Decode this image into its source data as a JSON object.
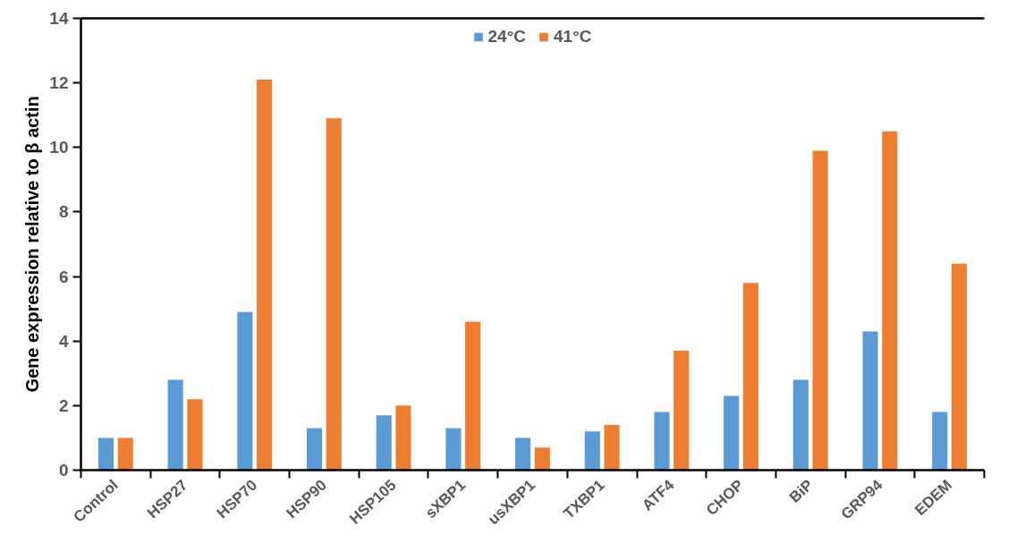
{
  "chart_data": {
    "type": "bar",
    "ylabel": "Gene expression relative to β actin",
    "categories": [
      "Control",
      "HSP27",
      "HSP70",
      "HSP90",
      "HSP105",
      "sXBP1",
      "usXBP1",
      "TXBP1",
      "ATF4",
      "CHOP",
      "BiP",
      "GRP94",
      "EDEM"
    ],
    "series": [
      {
        "name": "24°C",
        "color": "#5b9bd5",
        "values": [
          1.0,
          2.8,
          4.9,
          1.3,
          1.7,
          1.3,
          1.0,
          1.2,
          1.8,
          2.3,
          2.8,
          4.3,
          1.8
        ]
      },
      {
        "name": "41°C",
        "color": "#ed7d31",
        "values": [
          1.0,
          2.2,
          12.1,
          10.9,
          2.0,
          4.6,
          0.7,
          1.4,
          3.7,
          5.8,
          9.9,
          10.5,
          6.4
        ]
      }
    ],
    "ylim": [
      0,
      14
    ],
    "yticks": [
      0,
      2,
      4,
      6,
      8,
      10,
      12,
      14
    ],
    "grid": false,
    "legend": "top"
  }
}
